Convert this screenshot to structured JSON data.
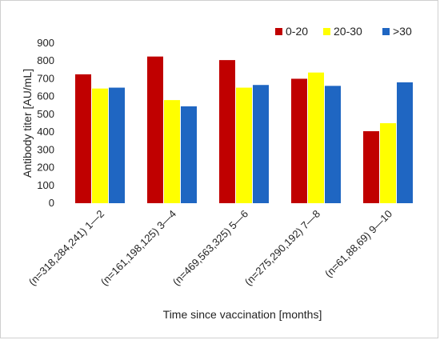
{
  "chart_data": {
    "type": "bar",
    "categories": [
      "(n=318,284,241) 1—2",
      "(n=161,198,125) 3—4",
      "(n=469,563,325) 5—6",
      "(n=275,290,192) 7—8",
      "(n=61,88,69) 9—10"
    ],
    "series": [
      {
        "name": "0-20",
        "color": "#c00000",
        "values": [
          725,
          825,
          805,
          700,
          405
        ]
      },
      {
        "name": "20-30",
        "color": "#ffff00",
        "values": [
          645,
          580,
          650,
          735,
          450
        ]
      },
      {
        "name": ">30",
        "color": "#1f66c2",
        "values": [
          650,
          545,
          665,
          660,
          680
        ]
      }
    ],
    "xlabel": "Time since vaccination [months]",
    "ylabel": "Antibody titer [AU/mL]",
    "ylim": [
      0,
      900
    ],
    "yticks": [
      0,
      100,
      200,
      300,
      400,
      500,
      600,
      700,
      800,
      900
    ],
    "grid": false,
    "legend_position": "top-right"
  }
}
